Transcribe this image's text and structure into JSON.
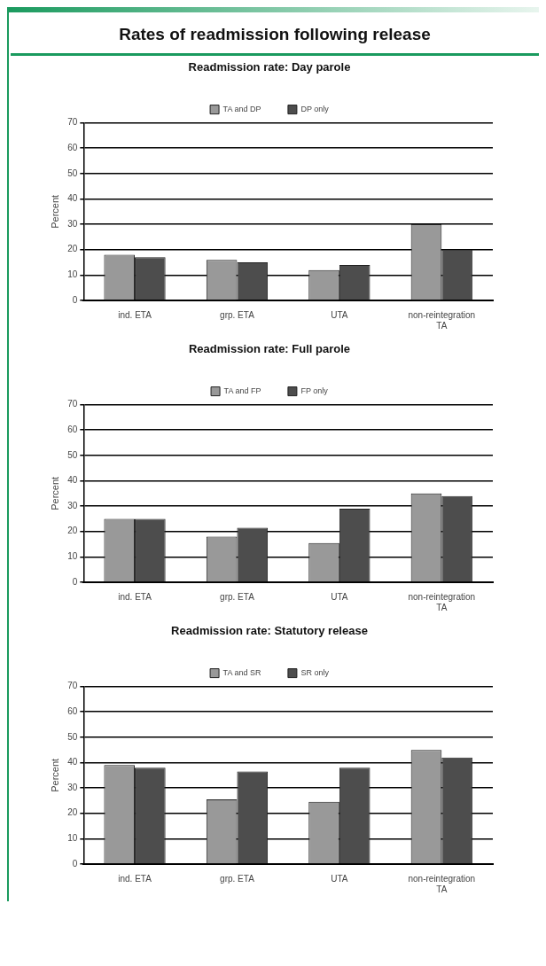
{
  "chart_data": [
    {
      "type": "other",
      "title": "Rates of readmission following release"
    },
    {
      "type": "bar",
      "title": "Readmission rate: Day parole",
      "ylabel": "Percent",
      "categories": [
        "ind. ETA",
        "grp. ETA",
        "UTA",
        "non-reintegration TA"
      ],
      "series": [
        {
          "name": "TA and DP",
          "color": "#999999",
          "values": [
            18,
            16,
            12,
            30
          ]
        },
        {
          "name": "DP only",
          "color": "#4d4d4d",
          "values": [
            17,
            15,
            14,
            20
          ]
        }
      ],
      "ylim": [
        0,
        70
      ],
      "yticks": [
        0,
        10,
        20,
        30,
        40,
        50,
        60,
        70
      ],
      "grid": "y",
      "legend": "top"
    },
    {
      "type": "bar",
      "title": "Readmission rate: Full parole",
      "ylabel": "Percent",
      "categories": [
        "ind. ETA",
        "grp. ETA",
        "UTA",
        "non-reintegration TA"
      ],
      "series": [
        {
          "name": "TA and FP",
          "color": "#999999",
          "values": [
            25,
            18,
            15.5,
            35
          ]
        },
        {
          "name": "FP only",
          "color": "#4d4d4d",
          "values": [
            25,
            21.5,
            29,
            34
          ]
        }
      ],
      "ylim": [
        0,
        70
      ],
      "yticks": [
        0,
        10,
        20,
        30,
        40,
        50,
        60,
        70
      ],
      "grid": "y",
      "legend": "top"
    },
    {
      "type": "bar",
      "title": "Readmission rate: Statutory release",
      "ylabel": "Percent",
      "categories": [
        "ind. ETA",
        "grp. ETA",
        "UTA",
        "non-reintegration TA"
      ],
      "series": [
        {
          "name": "TA and SR",
          "color": "#999999",
          "values": [
            39,
            25.5,
            24.5,
            45
          ]
        },
        {
          "name": "SR only",
          "color": "#4d4d4d",
          "values": [
            38,
            36.5,
            38,
            42
          ]
        }
      ],
      "ylim": [
        0,
        70
      ],
      "yticks": [
        0,
        10,
        20,
        30,
        40,
        50,
        60,
        70
      ],
      "grid": "y",
      "legend": "top"
    }
  ]
}
